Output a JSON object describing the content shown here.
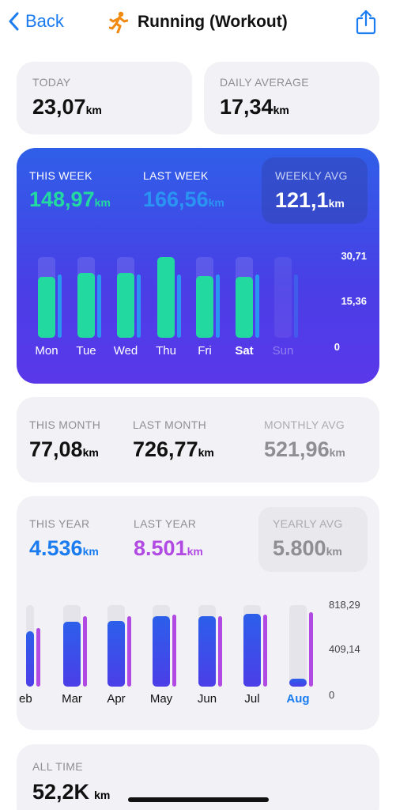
{
  "nav": {
    "back_label": "Back",
    "title": "Running (Workout)",
    "title_icon": "running-figure-icon",
    "accent": "#1a7cf0"
  },
  "today": {
    "label": "TODAY",
    "value": "23,07",
    "unit": "km"
  },
  "daily_avg": {
    "label": "DAILY AVERAGE",
    "value": "17,34",
    "unit": "km"
  },
  "week": {
    "this_label": "THIS WEEK",
    "this_value": "148,97",
    "this_unit": "km",
    "last_label": "LAST WEEK",
    "last_value": "166,56",
    "last_unit": "km",
    "avg_label": "WEEKLY AVG",
    "avg_value": "121,1",
    "avg_unit": "km",
    "ticks": [
      "30,71",
      "15,36",
      "0"
    ],
    "days": [
      "Mon",
      "Tue",
      "Wed",
      "Thu",
      "Fri",
      "Sat",
      "Sun"
    ],
    "this_week_fraction": [
      0.75,
      0.8,
      0.8,
      1.0,
      0.76,
      0.75,
      0
    ],
    "current_day": "Sat",
    "colors": {
      "this_week": "#22d9a0",
      "last_week": "#2a94f2"
    }
  },
  "month": {
    "this_label": "THIS MONTH",
    "this_value": "77,08",
    "this_unit": "km",
    "last_label": "LAST MONTH",
    "last_value": "726,77",
    "last_unit": "km",
    "avg_label": "MONTHLY AVG",
    "avg_value": "521,96",
    "avg_unit": "km"
  },
  "year": {
    "this_label": "THIS YEAR",
    "this_value": "4.536",
    "this_unit": "km",
    "last_label": "LAST YEAR",
    "last_value": "8.501",
    "last_unit": "km",
    "avg_label": "YEARLY AVG",
    "avg_value": "5.800",
    "avg_unit": "km",
    "ticks": [
      "818,29",
      "409,14",
      "0"
    ],
    "months": [
      "eb",
      "Mar",
      "Apr",
      "May",
      "Jun",
      "Jul",
      "Aug"
    ],
    "this_year_fraction": [
      0.68,
      0.8,
      0.81,
      0.86,
      0.86,
      0.89,
      0.09
    ],
    "last_year_fraction": [
      0.72,
      0.86,
      0.86,
      0.88,
      0.86,
      0.88,
      0.91
    ],
    "current_month": "Aug",
    "colors": {
      "this_year": "#2c5fea",
      "last_year": "#b14ae3",
      "this_year_text": "#1a7cf0",
      "last_year_text": "#b14ae3"
    }
  },
  "all_time": {
    "label": "ALL TIME",
    "value": "52,2K",
    "unit": "km"
  },
  "chart_data": [
    {
      "type": "bar",
      "categories": [
        "Mon",
        "Tue",
        "Wed",
        "Thu",
        "Fri",
        "Sat",
        "Sun"
      ],
      "series": [
        {
          "values": [
            23.1,
            24.6,
            24.6,
            30.7,
            23.4,
            23.1,
            0
          ]
        }
      ],
      "ylim": [
        0,
        30.71
      ]
    },
    {
      "type": "bar",
      "categories": [
        "Feb",
        "Mar",
        "Apr",
        "May",
        "Jun",
        "Jul",
        "Aug"
      ],
      "series": [
        {
          "name": "THIS YEAR",
          "values": [
            556,
            655,
            663,
            704,
            704,
            728,
            77
          ]
        },
        {
          "name": "LAST YEAR",
          "values": [
            589,
            704,
            704,
            720,
            704,
            720,
            745
          ]
        }
      ],
      "ylim": [
        0,
        818.29
      ]
    }
  ]
}
